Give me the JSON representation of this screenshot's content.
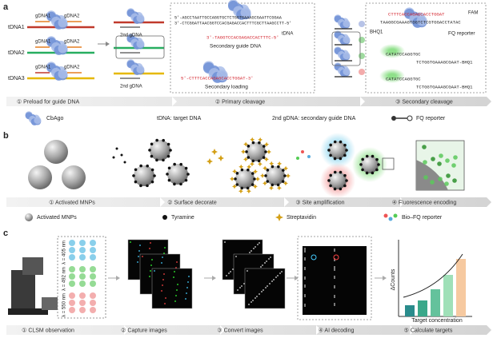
{
  "panel_a": {
    "label": "a",
    "rows": [
      {
        "target": "tDNA1",
        "guides": [
          "gDNA1",
          "gDNA2"
        ]
      },
      {
        "target": "tDNA2",
        "guides": [
          "gDNA1",
          "gDNA2"
        ]
      },
      {
        "target": "tDNA3",
        "guides": [
          "gDNA1",
          "gDNA2"
        ]
      }
    ],
    "second_gdna": "2nd gDNA",
    "tdna": "tDNA",
    "seq_top": "5′-AGCCTAATTGCCAGGTGCTCTGGTGAAAGCGAATTCGGAA",
    "seq_bottom": "3′-CTCGGATTAACGGTCCACGAGACCACTTTCGCTTAAGCCTT-5′",
    "secondary_guide_seq": "3′-TAGGTCCACGAGACCACTTTC-5′",
    "secondary_guide": "Secondary guide DNA",
    "loading_seq": "5′-CTTTCACCAGAGCACCTGGAT-3′",
    "secondary_loading": "Secondary loading",
    "reporter_top": "CTTTCACCAGAGCACCTGGAT",
    "reporter_bottom": "TAAGGCGAAAGTGGTCTCGTGGACCTATAC",
    "fam": "FAM",
    "bhq": "BHQ1",
    "fq_reporter": "FQ reporter",
    "fragments": [
      "CATATCCAGGTGC",
      "TCTGGTGAAAGCGAAT-BHQ1",
      "CATATCCAGGTGC",
      "TCTGGTGAAAGCGAAT-BHQ1"
    ],
    "steps": [
      "① Preload for guide DNA",
      "② Primary cleavage",
      "③ Secondary cleavage"
    ],
    "legend": [
      "CbAgo",
      "tDNA: target DNA",
      "2nd gDNA: secondary guide DNA",
      "FQ reporter"
    ]
  },
  "panel_b": {
    "label": "b",
    "steps": [
      "① Activated MNPs",
      "② Surface decorate",
      "③ Site amplification",
      "④ Fluorescence encoding"
    ],
    "legend": [
      "Activated MNPs",
      "Tyramine",
      "Streptavidin",
      "Bio–FQ reporter"
    ]
  },
  "panel_c": {
    "label": "c",
    "wavelengths": [
      "λ = 405 nm",
      "λ = 492 nm",
      "λ = 550 nm"
    ],
    "y_axis": "ΔCounts",
    "x_axis": "Target concentration",
    "steps": [
      "① CLSM observation",
      "② Capture images",
      "③ Convert images",
      "④ AI decoding",
      "⑤ Calculate targets"
    ]
  }
}
